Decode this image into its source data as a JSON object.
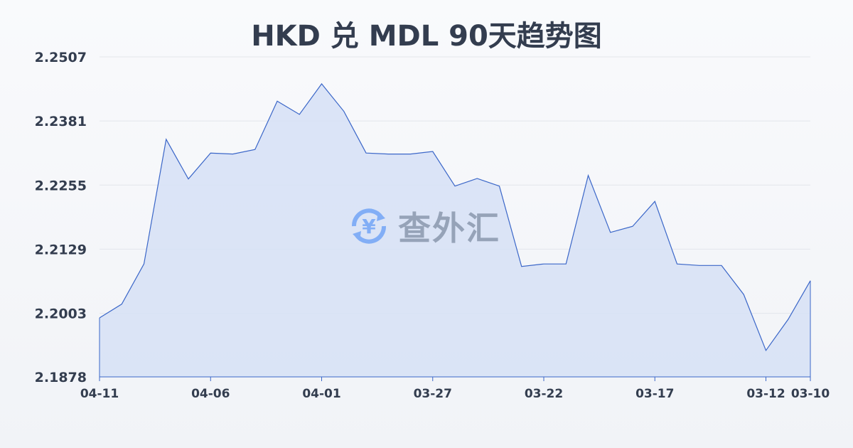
{
  "title": "HKD 兑 MDL 90天趋势图",
  "watermark": {
    "text": "查外汇",
    "icon": "yen-exchange-icon"
  },
  "colors": {
    "line": "#3a66c8",
    "fill": "#d6e1f6",
    "grid": "#e3e6eb",
    "text": "#333d4f"
  },
  "chart_data": {
    "type": "area",
    "title": "HKD 兑 MDL 90天趋势图",
    "xlabel": "",
    "ylabel": "",
    "ylim": [
      2.1878,
      2.2507
    ],
    "yticks": [
      "2.2507",
      "2.2381",
      "2.2255",
      "2.2129",
      "2.2003",
      "2.1878"
    ],
    "xticks": [
      "04-11",
      "04-06",
      "04-01",
      "03-27",
      "03-22",
      "03-17",
      "03-12",
      "03-10"
    ],
    "grid": true,
    "categories": [
      "04-11",
      "04-10",
      "04-09",
      "04-08",
      "04-07",
      "04-06",
      "04-05",
      "04-04",
      "04-03",
      "04-02",
      "04-01",
      "03-31",
      "03-30",
      "03-29",
      "03-28",
      "03-27",
      "03-26",
      "03-25",
      "03-24",
      "03-23",
      "03-22",
      "03-21",
      "03-20",
      "03-19",
      "03-18",
      "03-17",
      "03-16",
      "03-15",
      "03-14",
      "03-13",
      "03-12",
      "03-11",
      "03-10"
    ],
    "values": [
      2.1994,
      2.2021,
      2.21,
      2.2345,
      2.2267,
      2.2318,
      2.2316,
      2.2325,
      2.242,
      2.2394,
      2.2454,
      2.24,
      2.2318,
      2.2316,
      2.2316,
      2.2321,
      2.2253,
      2.2268,
      2.2253,
      2.2095,
      2.21,
      2.21,
      2.2274,
      2.2162,
      2.2174,
      2.2223,
      2.21,
      2.2097,
      2.2097,
      2.204,
      2.193,
      2.1991,
      2.2067
    ]
  }
}
